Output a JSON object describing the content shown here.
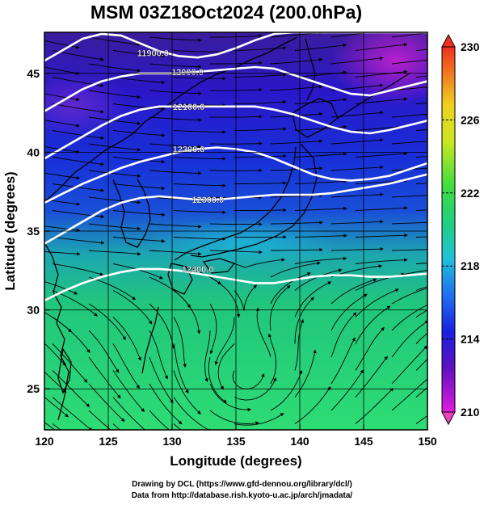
{
  "title": "MSM 03Z18Oct2024 (200.0hPa)",
  "footer": {
    "line1": "Drawing by DCL (https://www.gfd-dennou.org/library/dcl/)",
    "line2": "Data from http://database.rish.kyoto-u.ac.jp/arch/jmadata/"
  },
  "chart_data": {
    "type": "heatmap",
    "xlabel": "Longitude (degrees)",
    "ylabel": "Latitude  (degrees)",
    "xlim": [
      120,
      150
    ],
    "ylim": [
      22.4,
      47.6
    ],
    "x_ticks": [
      "120",
      "125",
      "130",
      "135",
      "140",
      "145",
      "150"
    ],
    "y_ticks": [
      "25",
      "30",
      "35",
      "40",
      "45"
    ],
    "x_tick_values": [
      120,
      125,
      130,
      135,
      140,
      145,
      150
    ],
    "y_tick_values": [
      25,
      30,
      35,
      40,
      45
    ],
    "grid": true,
    "colorbar": {
      "range": [
        210,
        230
      ],
      "labels": [
        "210",
        "214",
        "218",
        "222",
        "226",
        "230"
      ],
      "label_values": [
        210,
        214,
        218,
        222,
        226,
        230
      ]
    },
    "contours": [
      {
        "label": "11900.0",
        "lon": [
          120.0,
          121.5,
          123.0,
          124.5,
          126.0,
          127.5,
          129.0,
          130.5,
          132.0,
          133.5,
          135.0,
          136.5,
          138.0,
          139.5,
          141.0,
          142.5,
          144.0,
          145.5,
          147.0,
          148.5,
          150.0
        ],
        "lat": [
          45.8,
          46.5,
          47.2,
          47.5,
          47.4,
          46.9,
          46.4,
          46.1,
          46.0,
          46.2,
          46.6,
          47.1,
          47.5,
          47.6,
          47.6,
          47.6,
          47.6,
          47.6,
          47.6,
          47.6,
          47.6
        ],
        "label_lon": 128.5,
        "label_lat": 46.3
      },
      {
        "label": "12000.0",
        "lon": [
          120.0,
          121.5,
          123.0,
          124.5,
          126.0,
          127.5,
          129.0,
          130.5,
          132.0,
          133.5,
          135.0,
          136.5,
          138.0,
          139.5,
          141.0,
          142.5,
          144.0,
          145.5,
          147.0,
          148.5,
          150.0
        ],
        "lat": [
          42.6,
          43.3,
          44.0,
          44.5,
          44.8,
          45.0,
          45.0,
          45.0,
          45.1,
          45.2,
          45.3,
          45.4,
          45.3,
          44.9,
          44.5,
          44.1,
          43.7,
          43.6,
          43.9,
          44.2,
          44.5
        ],
        "label_lon": 131.2,
        "label_lat": 45.1
      },
      {
        "label": "12100.0",
        "lon": [
          120.0,
          121.5,
          123.0,
          124.5,
          126.0,
          127.5,
          129.0,
          130.5,
          132.0,
          133.5,
          135.0,
          136.5,
          138.0,
          139.5,
          141.0,
          142.5,
          144.0,
          145.5,
          147.0,
          148.5,
          150.0
        ],
        "lat": [
          39.6,
          40.3,
          41.0,
          41.7,
          42.3,
          42.7,
          42.9,
          42.9,
          42.9,
          42.9,
          42.9,
          42.9,
          42.7,
          42.4,
          42.0,
          41.6,
          41.3,
          41.2,
          41.4,
          41.7,
          42.0
        ],
        "label_lon": 131.3,
        "label_lat": 42.9
      },
      {
        "label": "12200.0",
        "lon": [
          120.0,
          121.5,
          123.0,
          124.5,
          126.0,
          127.5,
          129.0,
          130.5,
          132.0,
          133.5,
          135.0,
          136.5,
          138.0,
          139.5,
          141.0,
          142.5,
          144.0,
          145.5,
          147.0,
          148.5,
          150.0
        ],
        "lat": [
          36.8,
          37.4,
          38.0,
          38.5,
          39.0,
          39.4,
          39.7,
          40.0,
          40.2,
          40.3,
          40.2,
          40.0,
          39.6,
          39.1,
          38.6,
          38.3,
          38.2,
          38.3,
          38.5,
          38.9,
          39.3
        ],
        "label_lon": 131.3,
        "label_lat": 40.2
      },
      {
        "label": "12300.0",
        "lon": [
          120.0,
          121.5,
          123.0,
          124.5,
          126.0,
          127.5,
          129.0,
          130.5,
          132.0,
          133.5,
          135.0,
          136.5,
          138.0,
          139.5,
          141.0,
          142.5,
          144.0,
          145.5,
          147.0,
          148.5,
          150.0
        ],
        "lat": [
          34.2,
          34.9,
          35.6,
          36.3,
          36.8,
          37.1,
          37.2,
          37.1,
          37.0,
          37.0,
          37.1,
          37.2,
          37.3,
          37.3,
          37.3,
          37.4,
          37.6,
          37.8,
          38.0,
          38.3,
          38.6
        ],
        "label_lon": 132.8,
        "label_lat": 37.0
      },
      {
        "label": "12400.0",
        "lon": [
          120.0,
          121.5,
          123.0,
          124.5,
          126.0,
          127.5,
          129.0,
          130.5,
          132.0,
          133.5,
          135.0,
          136.5,
          138.0,
          139.5,
          141.0,
          142.5,
          144.0,
          145.5,
          147.0,
          148.5,
          150.0
        ],
        "lat": [
          30.6,
          31.2,
          31.7,
          32.1,
          32.4,
          32.6,
          32.6,
          32.5,
          32.3,
          32.1,
          31.9,
          31.7,
          31.7,
          31.9,
          32.1,
          32.2,
          32.2,
          32.1,
          32.1,
          32.2,
          32.3
        ],
        "label_lon": 132.0,
        "label_lat": 32.6
      }
    ]
  }
}
